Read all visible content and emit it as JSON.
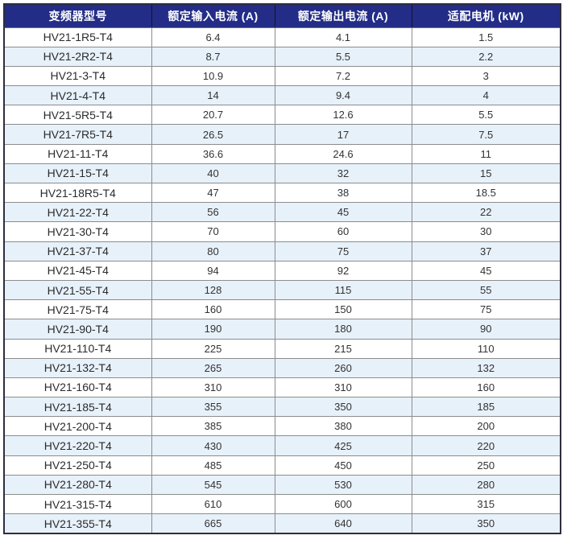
{
  "table": {
    "columns": [
      {
        "label": "变频器型号"
      },
      {
        "label": "额定输入电流 (A)"
      },
      {
        "label": "额定输出电流 (A)"
      },
      {
        "label": "适配电机 (kW)"
      }
    ],
    "rows": [
      [
        "HV21-1R5-T4",
        "6.4",
        "4.1",
        "1.5"
      ],
      [
        "HV21-2R2-T4",
        "8.7",
        "5.5",
        "2.2"
      ],
      [
        "HV21-3-T4",
        "10.9",
        "7.2",
        "3"
      ],
      [
        "HV21-4-T4",
        "14",
        "9.4",
        "4"
      ],
      [
        "HV21-5R5-T4",
        "20.7",
        "12.6",
        "5.5"
      ],
      [
        "HV21-7R5-T4",
        "26.5",
        "17",
        "7.5"
      ],
      [
        "HV21-11-T4",
        "36.6",
        "24.6",
        "11"
      ],
      [
        "HV21-15-T4",
        "40",
        "32",
        "15"
      ],
      [
        "HV21-18R5-T4",
        "47",
        "38",
        "18.5"
      ],
      [
        "HV21-22-T4",
        "56",
        "45",
        "22"
      ],
      [
        "HV21-30-T4",
        "70",
        "60",
        "30"
      ],
      [
        "HV21-37-T4",
        "80",
        "75",
        "37"
      ],
      [
        "HV21-45-T4",
        "94",
        "92",
        "45"
      ],
      [
        "HV21-55-T4",
        "128",
        "115",
        "55"
      ],
      [
        "HV21-75-T4",
        "160",
        "150",
        "75"
      ],
      [
        "HV21-90-T4",
        "190",
        "180",
        "90"
      ],
      [
        "HV21-110-T4",
        "225",
        "215",
        "110"
      ],
      [
        "HV21-132-T4",
        "265",
        "260",
        "132"
      ],
      [
        "HV21-160-T4",
        "310",
        "310",
        "160"
      ],
      [
        "HV21-185-T4",
        "355",
        "350",
        "185"
      ],
      [
        "HV21-200-T4",
        "385",
        "380",
        "200"
      ],
      [
        "HV21-220-T4",
        "430",
        "425",
        "220"
      ],
      [
        "HV21-250-T4",
        "485",
        "450",
        "250"
      ],
      [
        "HV21-280-T4",
        "545",
        "530",
        "280"
      ],
      [
        "HV21-315-T4",
        "610",
        "600",
        "315"
      ],
      [
        "HV21-355-T4",
        "665",
        "640",
        "350"
      ]
    ]
  },
  "colors": {
    "header_bg": "#232d87",
    "header_text": "#ffffff",
    "row_bg": "#ffffff",
    "row_alt_bg": "#e7f1fa",
    "grid_line": "#8c8c8c",
    "outer_border": "#2e2e3c",
    "cell_text": "#333333"
  }
}
